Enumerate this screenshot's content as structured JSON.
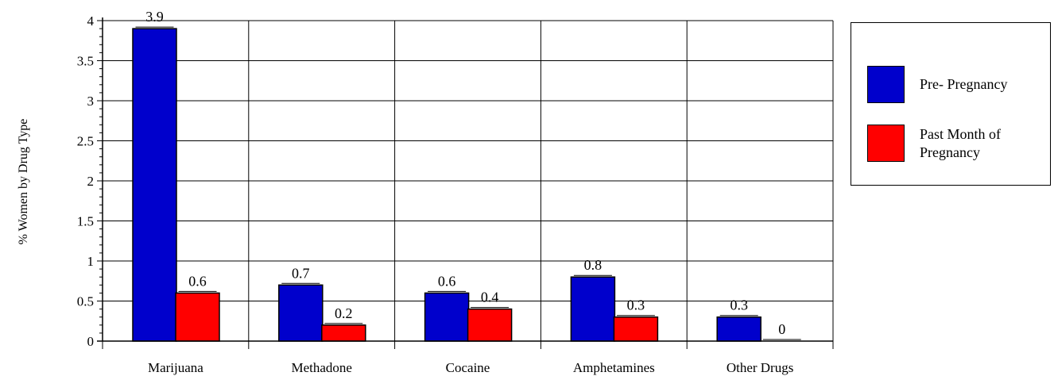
{
  "chart_data": {
    "type": "bar",
    "title": "",
    "xlabel": "",
    "ylabel": "% Women by Drug Type",
    "categories": [
      "Marijuana",
      "Methadone",
      "Cocaine",
      "Amphetamines",
      "Other Drugs"
    ],
    "series": [
      {
        "name": "Pre- Pregnancy",
        "color": "#0000cc",
        "values": [
          3.9,
          0.7,
          0.6,
          0.8,
          0.3
        ]
      },
      {
        "name": "Past Month of Pregnancy",
        "color": "#ff0000",
        "values": [
          0.6,
          0.2,
          0.4,
          0.3,
          0
        ]
      }
    ],
    "data_labels": [
      [
        "3.9",
        "0.7",
        "0.6",
        "0.8",
        "0.3"
      ],
      [
        "0.6",
        "0.2",
        "0.4",
        "0.3",
        "0"
      ]
    ],
    "ylim": [
      0,
      4
    ],
    "yticks": [
      "0",
      "0.5",
      "1",
      "1.5",
      "2",
      "2.5",
      "3",
      "3.5",
      "4"
    ],
    "grid": true,
    "legend_position": "right"
  },
  "legend": {
    "item1": {
      "label": "Pre- Pregnancy",
      "color": "#0000cc"
    },
    "item2": {
      "line1": "Past Month of",
      "line2": "Pregnancy",
      "color": "#ff0000"
    }
  }
}
